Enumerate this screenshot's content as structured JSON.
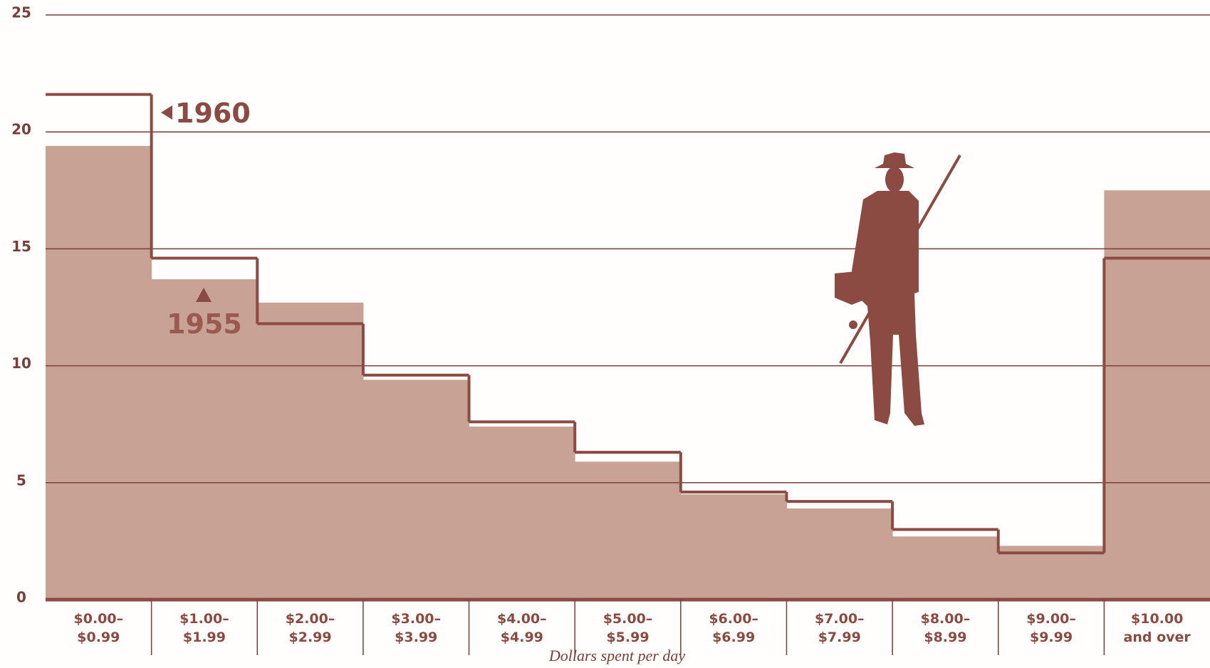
{
  "chart_data": {
    "type": "step",
    "x_label": "Dollars spent per day",
    "categories": [
      "$0.00–\n$0.99",
      "$1.00–\n$1.99",
      "$2.00–\n$2.99",
      "$3.00–\n$3.99",
      "$4.00–\n$4.99",
      "$5.00–\n$5.99",
      "$6.00–\n$6.99",
      "$7.00–\n$7.99",
      "$8.00–\n$8.99",
      "$9.00–\n$9.99",
      "$10.00\nand over"
    ],
    "series": [
      {
        "name": "1955",
        "color": "#c9a296",
        "style": "area",
        "values": [
          19.4,
          13.7,
          12.7,
          9.4,
          7.4,
          5.9,
          4.5,
          3.9,
          2.7,
          2.3,
          17.5
        ]
      },
      {
        "name": "1960",
        "color": "#8b4a42",
        "style": "line",
        "values": [
          21.6,
          14.6,
          11.8,
          9.6,
          7.6,
          6.3,
          4.6,
          4.2,
          3.0,
          2.0,
          14.6
        ]
      }
    ],
    "ylim": [
      0,
      25
    ],
    "yticks": [
      0,
      5,
      10,
      15,
      20,
      25
    ],
    "grid": true
  }
}
